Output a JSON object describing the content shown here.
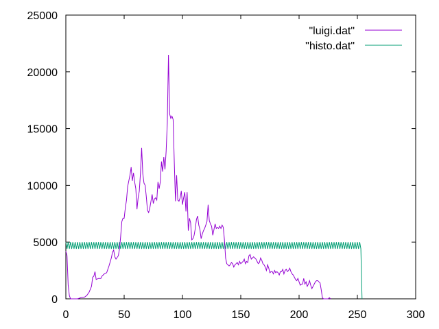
{
  "chart_data": {
    "type": "line",
    "title": "",
    "xlabel": "",
    "ylabel": "",
    "xlim": [
      0,
      300
    ],
    "ylim": [
      0,
      25000
    ],
    "xticks": [
      "0",
      "50",
      "100",
      "150",
      "200",
      "250",
      "300"
    ],
    "yticks": [
      "0",
      "5000",
      "10000",
      "15000",
      "20000",
      "25000"
    ],
    "grid": false,
    "legend_position": "top-right",
    "series": [
      {
        "name": "\"luigi.dat\"",
        "color": "#9400d3",
        "points": [
          [
            0,
            4200
          ],
          [
            1,
            3800
          ],
          [
            2,
            1200
          ],
          [
            3,
            300
          ],
          [
            4,
            0
          ],
          [
            10,
            0
          ],
          [
            13,
            100
          ],
          [
            16,
            150
          ],
          [
            18,
            300
          ],
          [
            20,
            600
          ],
          [
            22,
            1100
          ],
          [
            23,
            1900
          ],
          [
            24,
            2000
          ],
          [
            25,
            2400
          ],
          [
            26,
            1700
          ],
          [
            28,
            1800
          ],
          [
            30,
            1800
          ],
          [
            31,
            2000
          ],
          [
            33,
            2200
          ],
          [
            35,
            2300
          ],
          [
            37,
            2900
          ],
          [
            39,
            3600
          ],
          [
            40,
            4100
          ],
          [
            41,
            4300
          ],
          [
            42,
            3700
          ],
          [
            43,
            3500
          ],
          [
            45,
            3800
          ],
          [
            46,
            4400
          ],
          [
            47,
            5500
          ],
          [
            48,
            6800
          ],
          [
            49,
            7100
          ],
          [
            50,
            7100
          ],
          [
            51,
            8000
          ],
          [
            52,
            8700
          ],
          [
            53,
            9900
          ],
          [
            54,
            10400
          ],
          [
            55,
            10900
          ],
          [
            56,
            11600
          ],
          [
            57,
            10400
          ],
          [
            58,
            11100
          ],
          [
            59,
            10300
          ],
          [
            60,
            9700
          ],
          [
            61,
            7900
          ],
          [
            62,
            8900
          ],
          [
            63,
            9500
          ],
          [
            64,
            11100
          ],
          [
            65,
            13300
          ],
          [
            66,
            11000
          ],
          [
            67,
            10200
          ],
          [
            68,
            10000
          ],
          [
            69,
            9000
          ],
          [
            70,
            7800
          ],
          [
            71,
            7600
          ],
          [
            72,
            8000
          ],
          [
            73,
            8600
          ],
          [
            74,
            9200
          ],
          [
            75,
            8400
          ],
          [
            76,
            8800
          ],
          [
            77,
            8900
          ],
          [
            78,
            8700
          ],
          [
            79,
            10300
          ],
          [
            80,
            9700
          ],
          [
            81,
            10300
          ],
          [
            82,
            12100
          ],
          [
            83,
            11200
          ],
          [
            84,
            12500
          ],
          [
            85,
            11400
          ],
          [
            86,
            13000
          ],
          [
            87,
            15500
          ],
          [
            88,
            21500
          ],
          [
            89,
            16300
          ],
          [
            90,
            15900
          ],
          [
            91,
            16100
          ],
          [
            92,
            15800
          ],
          [
            93,
            12000
          ],
          [
            94,
            8600
          ],
          [
            95,
            10900
          ],
          [
            96,
            8700
          ],
          [
            97,
            8600
          ],
          [
            98,
            8900
          ],
          [
            99,
            9500
          ],
          [
            100,
            8300
          ],
          [
            101,
            8900
          ],
          [
            102,
            9400
          ],
          [
            103,
            7700
          ],
          [
            104,
            9400
          ],
          [
            105,
            6000
          ],
          [
            106,
            7100
          ],
          [
            107,
            6700
          ],
          [
            108,
            5200
          ],
          [
            109,
            5300
          ],
          [
            110,
            5600
          ],
          [
            111,
            6200
          ],
          [
            112,
            7000
          ],
          [
            113,
            7300
          ],
          [
            114,
            6500
          ],
          [
            115,
            6100
          ],
          [
            116,
            5300
          ],
          [
            117,
            5700
          ],
          [
            118,
            6000
          ],
          [
            119,
            6200
          ],
          [
            120,
            6500
          ],
          [
            121,
            6800
          ],
          [
            122,
            8300
          ],
          [
            123,
            6900
          ],
          [
            124,
            6600
          ],
          [
            125,
            6400
          ],
          [
            126,
            5600
          ],
          [
            127,
            6100
          ],
          [
            128,
            6600
          ],
          [
            129,
            6200
          ],
          [
            130,
            6300
          ],
          [
            131,
            6200
          ],
          [
            132,
            6400
          ],
          [
            133,
            6200
          ],
          [
            134,
            6500
          ],
          [
            135,
            6300
          ],
          [
            136,
            5200
          ],
          [
            137,
            3600
          ],
          [
            138,
            3100
          ],
          [
            139,
            3000
          ],
          [
            140,
            2900
          ],
          [
            141,
            3000
          ],
          [
            142,
            3200
          ],
          [
            143,
            3100
          ],
          [
            144,
            2800
          ],
          [
            145,
            3000
          ],
          [
            146,
            3100
          ],
          [
            147,
            3200
          ],
          [
            148,
            3000
          ],
          [
            149,
            3300
          ],
          [
            150,
            3100
          ],
          [
            151,
            3200
          ],
          [
            152,
            3300
          ],
          [
            153,
            3500
          ],
          [
            154,
            3100
          ],
          [
            155,
            3300
          ],
          [
            156,
            3200
          ],
          [
            157,
            3800
          ],
          [
            158,
            3900
          ],
          [
            159,
            3500
          ],
          [
            160,
            3600
          ],
          [
            161,
            3700
          ],
          [
            162,
            3600
          ],
          [
            163,
            3500
          ],
          [
            164,
            3300
          ],
          [
            165,
            3100
          ],
          [
            166,
            3200
          ],
          [
            167,
            3600
          ],
          [
            168,
            3400
          ],
          [
            169,
            3100
          ],
          [
            170,
            3000
          ],
          [
            171,
            2800
          ],
          [
            172,
            2500
          ],
          [
            173,
            3000
          ],
          [
            174,
            2700
          ],
          [
            175,
            2300
          ],
          [
            176,
            2400
          ],
          [
            177,
            2400
          ],
          [
            178,
            2200
          ],
          [
            179,
            2500
          ],
          [
            180,
            2300
          ],
          [
            181,
            2400
          ],
          [
            182,
            2300
          ],
          [
            183,
            2100
          ],
          [
            184,
            2400
          ],
          [
            185,
            2400
          ],
          [
            186,
            2600
          ],
          [
            187,
            2200
          ],
          [
            188,
            2500
          ],
          [
            189,
            2600
          ],
          [
            190,
            2400
          ],
          [
            191,
            2500
          ],
          [
            192,
            2700
          ],
          [
            193,
            2400
          ],
          [
            194,
            2200
          ],
          [
            195,
            2100
          ],
          [
            196,
            1900
          ],
          [
            197,
            1700
          ],
          [
            198,
            1600
          ],
          [
            199,
            1800
          ],
          [
            200,
            1500
          ],
          [
            201,
            1200
          ],
          [
            202,
            1300
          ],
          [
            203,
            1300
          ],
          [
            204,
            1800
          ],
          [
            205,
            1300
          ],
          [
            206,
            1500
          ],
          [
            207,
            1100
          ],
          [
            208,
            1300
          ],
          [
            209,
            1600
          ],
          [
            210,
            1200
          ],
          [
            211,
            900
          ],
          [
            212,
            1100
          ],
          [
            213,
            1300
          ],
          [
            214,
            1500
          ],
          [
            215,
            1600
          ],
          [
            216,
            1600
          ],
          [
            217,
            1500
          ],
          [
            218,
            1400
          ],
          [
            219,
            800
          ],
          [
            220,
            100
          ],
          [
            221,
            0
          ],
          [
            225,
            0
          ],
          [
            226,
            100
          ],
          [
            227,
            0
          ]
        ]
      },
      {
        "name": "\"histo.dat\"",
        "color": "#009e73",
        "baseline": 4700,
        "amplitude": 300,
        "x_start": 0,
        "x_end": 253,
        "drop_to": 0
      }
    ]
  }
}
